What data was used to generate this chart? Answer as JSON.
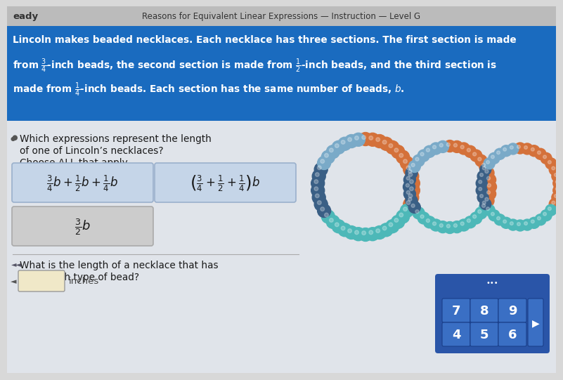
{
  "title": "Reasons for Equivalent Linear Expressions — Instruction — Level G",
  "header_bg": "#1a6bbf",
  "nav_bg": "#cccccc",
  "body_bg": "#d8d8d8",
  "left_label": "eady",
  "question1": "Which expressions represent the length",
  "question1b": "of one of Lincoln’s necklaces?",
  "question1c": "Choose ALL that apply.",
  "question2": "What is the length of a necklace that has",
  "question2b": "10 of each type of bead?",
  "inches_label": "inches",
  "keypad_numbers": [
    [
      "7",
      "8",
      "9"
    ],
    [
      "4",
      "5",
      "6"
    ]
  ],
  "keypad_bg": "#2a55a8",
  "box_selected_color": "#c5d5e8",
  "box_default_color": "#cccccc",
  "bead_orange": "#d4713a",
  "bead_teal": "#4db8b8",
  "bead_darkblue": "#3a5f85",
  "bead_lightblue": "#7aaac8"
}
